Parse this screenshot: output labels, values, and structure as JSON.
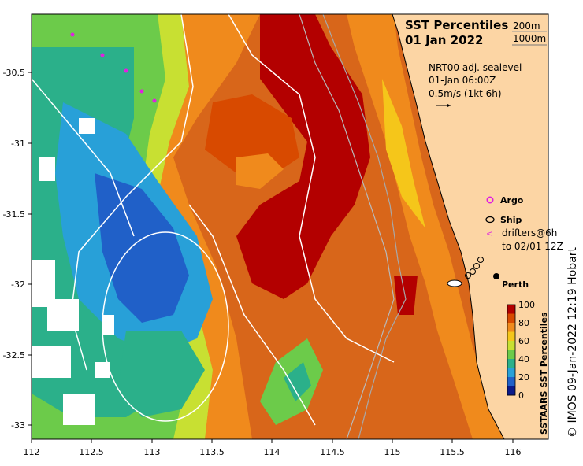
{
  "title": {
    "line1": "SST Percentiles",
    "line2": "01 Jan 2022"
  },
  "depth_legend": {
    "d1": "200m",
    "d2": "1000m"
  },
  "current_info": {
    "line1": "NRT00 adj. sealevel",
    "line2": "01-Jan 06:00Z",
    "line3": "0.5m/s (1kt 6h)"
  },
  "legend": {
    "argo": "Argo",
    "ship": "Ship",
    "drifters1": "drifters@6h",
    "drifters2": "to 02/01 12Z"
  },
  "place": {
    "perth": "Perth"
  },
  "colorbar": {
    "title": "SSTAARS SST Percentiles",
    "ticks": [
      "100",
      "80",
      "60",
      "40",
      "20",
      "0"
    ],
    "colors": [
      "#b30000",
      "#d84a00",
      "#f08a1c",
      "#f5c61a",
      "#c8e032",
      "#6ccb4a",
      "#2bb08a",
      "#28a0d8",
      "#2060c8",
      "#0a1a8a"
    ]
  },
  "credit": "© IMOS 09-Jan-2022 12:19 Hobart",
  "axes": {
    "x_ticks": [
      "112",
      "112.5",
      "113",
      "113.5",
      "114",
      "114.5",
      "115",
      "115.5",
      "116"
    ],
    "y_ticks": [
      "-30.5",
      "-31",
      "-31.5",
      "-32",
      "-32.5",
      "-33"
    ]
  },
  "colors": {
    "land": "#fcd5a4",
    "sea_hot": "#b30000",
    "sea_warm": "#d8661a",
    "sea_cool": "#28a0d8",
    "argo": "#e020e0"
  }
}
